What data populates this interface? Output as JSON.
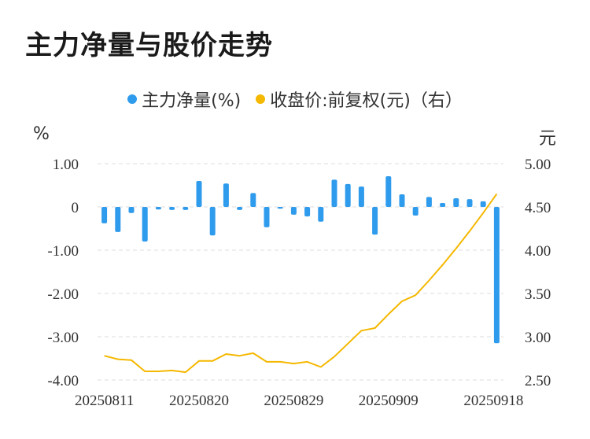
{
  "title": "主力净量与股价走势",
  "legend": {
    "series1": "主力净量(%)",
    "series2": "收盘价:前复权(元)（右）"
  },
  "colors": {
    "bar": "#2f9bec",
    "line": "#f5b800",
    "grid": "#dddddd"
  },
  "units": {
    "left": "%",
    "right": "元"
  },
  "chart_data": {
    "type": "bar+line",
    "x_tick_labels": [
      "20250811",
      "20250820",
      "20250829",
      "20250909",
      "20250918"
    ],
    "y_left": {
      "min": -4,
      "max": 1,
      "ticks": [
        "1.00",
        "0",
        "-1.00",
        "-2.00",
        "-3.00",
        "-4.00"
      ]
    },
    "y_right": {
      "min": 2.5,
      "max": 5.0,
      "ticks": [
        "5.00",
        "4.50",
        "4.00",
        "3.50",
        "3.00",
        "2.50"
      ]
    },
    "series": [
      {
        "name": "主力净量(%)",
        "type": "bar",
        "axis": "left",
        "values": [
          -0.38,
          -0.58,
          -0.14,
          -0.8,
          -0.06,
          -0.07,
          -0.07,
          0.6,
          -0.66,
          0.54,
          -0.07,
          0.32,
          -0.47,
          -0.04,
          -0.18,
          -0.22,
          -0.34,
          0.63,
          0.53,
          0.47,
          -0.64,
          0.71,
          0.29,
          -0.2,
          0.23,
          0.09,
          0.2,
          0.18,
          0.13,
          -3.15
        ]
      },
      {
        "name": "收盘价:前复权(元)（右）",
        "type": "line",
        "axis": "right",
        "values": [
          2.78,
          2.74,
          2.73,
          2.6,
          2.6,
          2.61,
          2.59,
          2.72,
          2.72,
          2.8,
          2.78,
          2.81,
          2.71,
          2.71,
          2.69,
          2.71,
          2.65,
          2.77,
          2.92,
          3.07,
          3.1,
          3.26,
          3.41,
          3.48,
          3.65,
          3.83,
          4.02,
          4.22,
          4.43,
          4.65
        ]
      }
    ]
  }
}
